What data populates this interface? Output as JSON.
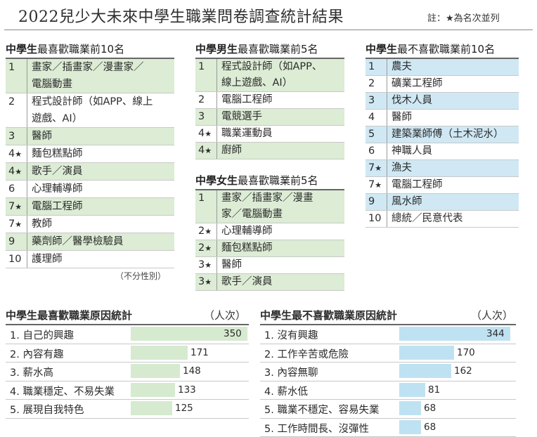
{
  "page": {
    "title": "2022兒少大未來中學生職業問卷調查統計結果",
    "note": "註：★為名次並列"
  },
  "lists": {
    "top10": {
      "title_a": "中學生",
      "title_b": "最喜歡職業前10名",
      "subnote": "（不分性別）",
      "items": [
        {
          "rank": "1",
          "star": "",
          "text": "畫家／插畫家／漫畫家／\n電腦動畫",
          "hl": true
        },
        {
          "rank": "2",
          "star": "",
          "text": "程式設計師（如APP、線上\n遊戲、AI）",
          "hl": false
        },
        {
          "rank": "3",
          "star": "",
          "text": "醫師",
          "hl": true
        },
        {
          "rank": "4",
          "star": "★",
          "text": "麵包糕點師",
          "hl": false
        },
        {
          "rank": "4",
          "star": "★",
          "text": "歌手／演員",
          "hl": true
        },
        {
          "rank": "6",
          "star": "",
          "text": "心理輔導師",
          "hl": false
        },
        {
          "rank": "7",
          "star": "★",
          "text": "電腦工程師",
          "hl": true
        },
        {
          "rank": "7",
          "star": "★",
          "text": "教師",
          "hl": false
        },
        {
          "rank": "9",
          "star": "",
          "text": "藥劑師／醫學檢驗員",
          "hl": true
        },
        {
          "rank": "10",
          "star": "",
          "text": "護理師",
          "hl": false
        }
      ]
    },
    "boys": {
      "title_a": "中學男生",
      "title_b": "最喜歡職業前5名",
      "items": [
        {
          "rank": "1",
          "star": "",
          "text": "程式設計師（如APP、\n線上遊戲、AI）",
          "hl": true
        },
        {
          "rank": "2",
          "star": "",
          "text": "電腦工程師",
          "hl": false
        },
        {
          "rank": "3",
          "star": "",
          "text": "電競選手",
          "hl": true
        },
        {
          "rank": "4",
          "star": "★",
          "text": "職業運動員",
          "hl": false
        },
        {
          "rank": "4",
          "star": "★",
          "text": "廚師",
          "hl": true
        }
      ]
    },
    "girls": {
      "title_a": "中學女生",
      "title_b": "最喜歡職業前5名",
      "items": [
        {
          "rank": "1",
          "star": "",
          "text": "畫家／插畫家／漫畫\n家／電腦動畫",
          "hl": true
        },
        {
          "rank": "2",
          "star": "★",
          "text": "心理輔導師",
          "hl": false
        },
        {
          "rank": "2",
          "star": "★",
          "text": "麵包糕點師",
          "hl": true
        },
        {
          "rank": "3",
          "star": "★",
          "text": "醫師",
          "hl": false
        },
        {
          "rank": "3",
          "star": "★",
          "text": "歌手／演員",
          "hl": true
        }
      ]
    },
    "dislike": {
      "title_a": "中學生",
      "title_b": "最不喜歡職業前10名",
      "items": [
        {
          "rank": "1",
          "star": "",
          "text": "農夫",
          "hl": true
        },
        {
          "rank": "2",
          "star": "",
          "text": "礦業工程師",
          "hl": false
        },
        {
          "rank": "3",
          "star": "",
          "text": "伐木人員",
          "hl": true
        },
        {
          "rank": "4",
          "star": "",
          "text": "醫師",
          "hl": false
        },
        {
          "rank": "5",
          "star": "",
          "text": "建築業師傅（土木泥水）",
          "hl": true
        },
        {
          "rank": "6",
          "star": "",
          "text": "神職人員",
          "hl": false
        },
        {
          "rank": "7",
          "star": "★",
          "text": "漁夫",
          "hl": true
        },
        {
          "rank": "7",
          "star": "★",
          "text": "電腦工程師",
          "hl": false
        },
        {
          "rank": "9",
          "star": "",
          "text": "風水師",
          "hl": true
        },
        {
          "rank": "10",
          "star": "",
          "text": "總統／民意代表",
          "hl": false
        }
      ]
    }
  },
  "chart_data": [
    {
      "type": "bar",
      "title": "中學生最喜歡職業原因統計",
      "unit": "（人次）",
      "color": "#d6ead0",
      "categories": [
        "1. 自己的興趣",
        "2. 內容有趣",
        "3. 薪水高",
        "4. 職業穩定、不易失業",
        "5. 展現自我特色"
      ],
      "values": [
        350,
        171,
        148,
        133,
        125
      ],
      "value_labels": [
        "350",
        "171",
        "148",
        "133",
        "125"
      ],
      "xlim": [
        0,
        350
      ]
    },
    {
      "type": "bar",
      "title": "中學生最不喜歡職業原因統計",
      "unit": "（人次）",
      "color": "#bfe2f2",
      "categories": [
        "1. 沒有興趣",
        "2. 工作辛苦或危險",
        "3. 內容無聊",
        "4. 薪水低",
        "5. 職業不穩定、容易失業",
        "5. 工作時間長、沒彈性"
      ],
      "values": [
        344,
        170,
        162,
        81,
        68,
        68
      ],
      "value_labels": [
        "344",
        "170",
        "162",
        "81",
        "68",
        "68"
      ],
      "xlim": [
        0,
        344
      ]
    }
  ]
}
